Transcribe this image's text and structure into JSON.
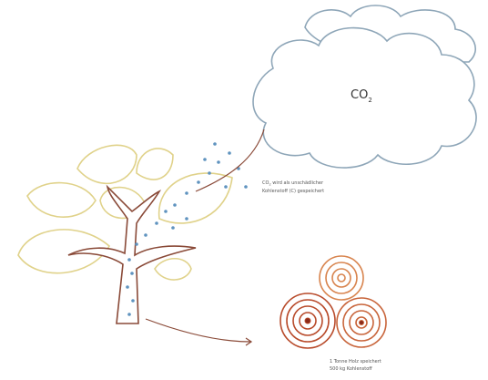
{
  "cloud": {
    "label": {
      "main": "CO",
      "sub": "2"
    }
  },
  "annotations": {
    "storage": {
      "lines": [
        {
          "main": "CO",
          "sub": "2",
          "rest": " wird als unschädlicher"
        },
        "Kohlenstoff (C) gespeichert"
      ]
    },
    "wood": {
      "lines": [
        "1 Tonne Holz speichert",
        "500 kg Kohlenstoff"
      ]
    }
  }
}
